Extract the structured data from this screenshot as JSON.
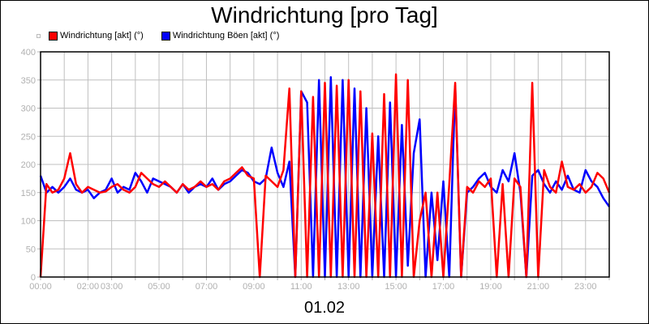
{
  "chart_data": {
    "type": "line",
    "title": "Windrichtung [pro Tag]",
    "xlabel": "01.02",
    "ylabel": "",
    "ylim": [
      0,
      400
    ],
    "xlim_hours": [
      0,
      24
    ],
    "x_step_hours": 0.25,
    "grid": true,
    "legend_position": "top-left",
    "y_ticks": [
      "0",
      "50",
      "100",
      "150",
      "200",
      "250",
      "300",
      "350",
      "400"
    ],
    "x_ticks": [
      {
        "hour": 0,
        "label": "00:00"
      },
      {
        "hour": 2,
        "label": "02:00"
      },
      {
        "hour": 3,
        "label": "03:00"
      },
      {
        "hour": 5,
        "label": "05:00"
      },
      {
        "hour": 7,
        "label": "07:00"
      },
      {
        "hour": 9,
        "label": "09:00"
      },
      {
        "hour": 11,
        "label": "11:00"
      },
      {
        "hour": 13,
        "label": "13:00"
      },
      {
        "hour": 15,
        "label": "15:00"
      },
      {
        "hour": 17,
        "label": "17:00"
      },
      {
        "hour": 19,
        "label": "19:00"
      },
      {
        "hour": 21,
        "label": "21:00"
      },
      {
        "hour": 23,
        "label": "23:00"
      }
    ],
    "series": [
      {
        "name": "Windrichtung [akt] (°)",
        "color": "#ff0000",
        "values": [
          0,
          165,
          150,
          155,
          175,
          220,
          165,
          150,
          160,
          155,
          150,
          152,
          160,
          165,
          155,
          150,
          160,
          185,
          175,
          165,
          160,
          170,
          160,
          150,
          165,
          155,
          160,
          170,
          160,
          165,
          155,
          170,
          175,
          185,
          195,
          180,
          175,
          0,
          180,
          170,
          160,
          190,
          335,
          0,
          330,
          0,
          320,
          0,
          345,
          0,
          340,
          0,
          350,
          0,
          330,
          0,
          255,
          0,
          325,
          0,
          360,
          0,
          350,
          0,
          100,
          150,
          0,
          150,
          0,
          165,
          345,
          0,
          160,
          150,
          170,
          160,
          175,
          0,
          165,
          0,
          175,
          160,
          0,
          345,
          0,
          190,
          160,
          150,
          205,
          160,
          155,
          165,
          150,
          160,
          185,
          175,
          150
        ]
      },
      {
        "name": "Windrichtung Böen [akt] (°)",
        "color": "#0000ff",
        "values": [
          180,
          150,
          160,
          150,
          160,
          175,
          155,
          150,
          155,
          140,
          150,
          155,
          175,
          150,
          160,
          155,
          185,
          170,
          150,
          175,
          170,
          165,
          160,
          150,
          165,
          150,
          160,
          165,
          160,
          175,
          155,
          165,
          170,
          180,
          190,
          185,
          170,
          165,
          175,
          230,
          185,
          160,
          205,
          0,
          330,
          310,
          0,
          350,
          0,
          355,
          0,
          350,
          0,
          335,
          0,
          300,
          0,
          250,
          0,
          310,
          0,
          270,
          20,
          220,
          280,
          0,
          150,
          30,
          170,
          0,
          340,
          0,
          150,
          160,
          175,
          185,
          160,
          150,
          190,
          170,
          220,
          150,
          0,
          180,
          190,
          165,
          150,
          170,
          155,
          180,
          155,
          150,
          190,
          170,
          160,
          140,
          125
        ]
      }
    ]
  }
}
